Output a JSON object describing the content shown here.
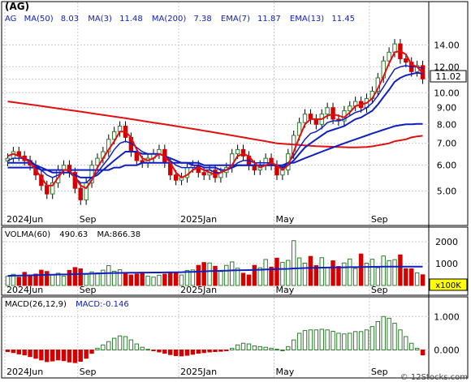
{
  "ticker": "(AG)",
  "legend_main": {
    "symbol": "AG",
    "items": [
      {
        "label": "MA(50)",
        "value": "8.03"
      },
      {
        "label": "MA(3)",
        "value": "11.48"
      },
      {
        "label": "MA(200)",
        "value": "7.38"
      },
      {
        "label": "EMA(7)",
        "value": "11.87"
      },
      {
        "label": "EMA(13)",
        "value": "11.45"
      }
    ]
  },
  "price_tag": "11.02",
  "volume_legend": {
    "label": "VOLMA(60)",
    "value": "490.63",
    "ma_label": "MA:866.38"
  },
  "volume_unit": "x100K",
  "macd_legend": {
    "label": "MACD(26,12,9)",
    "value": "MACD:-0.146"
  },
  "watermark": "© 12Stocks.com",
  "colors": {
    "up": "#2e7d2e",
    "down": "#d40000",
    "ma_blue": "#1020c0",
    "ma_red": "#e01010",
    "text_blue": "#1020c0"
  },
  "chart_data": [
    {
      "type": "candlestick",
      "scale": "log",
      "ylim": [
        4.3,
        16.0
      ],
      "yticks": [
        "14.00",
        "12.00",
        "11.00",
        "10.00",
        "9.00",
        "8.00",
        "7.00",
        "6.00",
        "5.00"
      ],
      "ytick_values": [
        14,
        12,
        11,
        10,
        9,
        8,
        7,
        6,
        5
      ],
      "x_labels": [
        {
          "label": "2024Jun",
          "week": 0
        },
        {
          "label": "Sep",
          "week": 13
        },
        {
          "label": "2025Jan",
          "week": 31
        },
        {
          "label": "May",
          "week": 48
        },
        {
          "label": "Sep",
          "week": 65
        }
      ],
      "weeks": 75,
      "close": [
        6.3,
        6.6,
        6.4,
        6.2,
        6.0,
        5.6,
        5.2,
        4.9,
        5.3,
        5.8,
        6.0,
        5.7,
        5.1,
        4.7,
        5.3,
        6.0,
        6.3,
        6.6,
        7.2,
        7.6,
        7.9,
        7.3,
        6.6,
        6.2,
        6.1,
        6.3,
        6.5,
        6.7,
        6.1,
        5.6,
        5.4,
        5.5,
        5.9,
        6.0,
        5.7,
        5.6,
        5.8,
        5.5,
        5.7,
        5.9,
        6.5,
        6.7,
        6.4,
        6.0,
        5.8,
        6.0,
        6.3,
        6.0,
        5.6,
        5.8,
        6.5,
        7.4,
        8.1,
        8.6,
        8.3,
        8.0,
        8.6,
        9.0,
        8.3,
        8.2,
        8.8,
        9.1,
        9.4,
        9.0,
        9.6,
        10.1,
        11.1,
        12.5,
        13.3,
        14.1,
        12.7,
        12.4,
        11.6,
        12.1,
        11.02
      ],
      "ma3": [
        6.4,
        6.5,
        6.4,
        6.3,
        6.1,
        5.8,
        5.5,
        5.2,
        5.2,
        5.5,
        5.8,
        5.8,
        5.5,
        5.2,
        5.1,
        5.4,
        5.9,
        6.3,
        6.7,
        7.1,
        7.6,
        7.6,
        7.3,
        6.7,
        6.3,
        6.2,
        6.3,
        6.5,
        6.4,
        6.1,
        5.7,
        5.5,
        5.6,
        5.8,
        5.9,
        5.8,
        5.7,
        5.6,
        5.7,
        5.8,
        6.0,
        6.4,
        6.5,
        6.4,
        6.1,
        5.9,
        6.0,
        6.1,
        6.0,
        5.8,
        6.0,
        6.6,
        7.3,
        8.0,
        8.3,
        8.3,
        8.3,
        8.5,
        8.6,
        8.5,
        8.4,
        8.7,
        9.1,
        9.2,
        9.3,
        9.6,
        10.3,
        11.2,
        12.3,
        13.3,
        13.4,
        13.1,
        12.2,
        12.0,
        11.48
      ],
      "ema7": [
        6.2,
        6.3,
        6.3,
        6.3,
        6.2,
        6.0,
        5.8,
        5.6,
        5.5,
        5.6,
        5.7,
        5.7,
        5.5,
        5.3,
        5.3,
        5.5,
        5.7,
        6.0,
        6.3,
        6.7,
        7.0,
        7.1,
        7.0,
        6.8,
        6.6,
        6.5,
        6.5,
        6.5,
        6.4,
        6.2,
        6.0,
        5.9,
        5.9,
        5.9,
        5.9,
        5.8,
        5.8,
        5.7,
        5.7,
        5.8,
        5.9,
        6.1,
        6.2,
        6.2,
        6.1,
        6.1,
        6.1,
        6.1,
        6.0,
        5.9,
        6.1,
        6.4,
        6.8,
        7.2,
        7.5,
        7.6,
        7.8,
        8.1,
        8.2,
        8.2,
        8.3,
        8.5,
        8.7,
        8.8,
        9.0,
        9.3,
        9.8,
        10.4,
        11.1,
        11.8,
        12.0,
        12.1,
        12.0,
        12.0,
        11.87
      ],
      "ema13": [
        6.1,
        6.1,
        6.1,
        6.1,
        6.1,
        6.0,
        5.9,
        5.8,
        5.7,
        5.7,
        5.7,
        5.7,
        5.6,
        5.5,
        5.5,
        5.5,
        5.6,
        5.8,
        6.0,
        6.2,
        6.4,
        6.6,
        6.6,
        6.6,
        6.5,
        6.5,
        6.5,
        6.5,
        6.4,
        6.3,
        6.2,
        6.1,
        6.1,
        6.0,
        6.0,
        5.9,
        5.9,
        5.9,
        5.8,
        5.8,
        5.9,
        6.0,
        6.0,
        6.0,
        6.0,
        6.0,
        6.0,
        6.0,
        6.0,
        5.9,
        6.0,
        6.2,
        6.5,
        6.8,
        7.0,
        7.2,
        7.4,
        7.6,
        7.7,
        7.8,
        7.9,
        8.1,
        8.3,
        8.4,
        8.6,
        8.8,
        9.2,
        9.7,
        10.2,
        10.8,
        11.1,
        11.3,
        11.4,
        11.5,
        11.45
      ],
      "ma50": [
        5.9,
        5.9,
        5.9,
        5.9,
        5.9,
        5.9,
        5.8,
        5.8,
        5.8,
        5.8,
        5.8,
        5.8,
        5.8,
        5.8,
        5.8,
        5.8,
        5.8,
        5.8,
        5.8,
        5.9,
        5.9,
        6.0,
        6.0,
        6.0,
        6.1,
        6.1,
        6.1,
        6.1,
        6.1,
        6.1,
        6.1,
        6.1,
        6.1,
        6.1,
        6.1,
        6.0,
        6.0,
        6.0,
        6.0,
        6.0,
        6.0,
        6.0,
        6.0,
        6.0,
        6.0,
        6.0,
        6.0,
        6.0,
        6.0,
        6.0,
        6.1,
        6.1,
        6.2,
        6.3,
        6.4,
        6.5,
        6.6,
        6.7,
        6.8,
        6.9,
        7.0,
        7.1,
        7.2,
        7.3,
        7.4,
        7.5,
        7.6,
        7.7,
        7.8,
        7.9,
        7.95,
        8.0,
        8.0,
        8.03,
        8.03
      ],
      "ma200": [
        9.4,
        9.35,
        9.3,
        9.25,
        9.2,
        9.15,
        9.1,
        9.05,
        9.0,
        8.95,
        8.9,
        8.85,
        8.8,
        8.75,
        8.7,
        8.65,
        8.6,
        8.55,
        8.5,
        8.45,
        8.4,
        8.35,
        8.3,
        8.25,
        8.2,
        8.15,
        8.1,
        8.05,
        8.0,
        7.95,
        7.9,
        7.85,
        7.8,
        7.75,
        7.7,
        7.65,
        7.6,
        7.55,
        7.5,
        7.45,
        7.4,
        7.35,
        7.3,
        7.25,
        7.2,
        7.15,
        7.1,
        7.05,
        7.0,
        6.98,
        6.96,
        6.94,
        6.92,
        6.9,
        6.88,
        6.86,
        6.85,
        6.84,
        6.83,
        6.82,
        6.81,
        6.8,
        6.8,
        6.81,
        6.82,
        6.85,
        6.9,
        6.95,
        7.0,
        7.1,
        7.15,
        7.2,
        7.3,
        7.35,
        7.38
      ]
    },
    {
      "type": "bar",
      "name": "volume",
      "ylim": [
        0,
        2300
      ],
      "yticks": [
        "2000",
        "1000"
      ],
      "ytick_values": [
        2000,
        1000
      ],
      "values": [
        420,
        510,
        380,
        600,
        450,
        520,
        700,
        640,
        480,
        560,
        430,
        690,
        820,
        760,
        510,
        620,
        580,
        700,
        910,
        650,
        720,
        560,
        480,
        520,
        600,
        430,
        380,
        470,
        520,
        610,
        560,
        480,
        690,
        710,
        920,
        1050,
        1030,
        880,
        640,
        920,
        1080,
        790,
        560,
        480,
        920,
        810,
        1190,
        840,
        1250,
        1060,
        1150,
        2050,
        1260,
        1020,
        1330,
        910,
        1270,
        820,
        1130,
        870,
        1030,
        1210,
        780,
        1440,
        1020,
        1200,
        810,
        1350,
        1140,
        1180,
        1400,
        770,
        760,
        580,
        490
      ],
      "ma": [
        440,
        450,
        455,
        460,
        465,
        470,
        480,
        490,
        495,
        500,
        505,
        510,
        520,
        530,
        535,
        540,
        545,
        555,
        565,
        570,
        575,
        580,
        582,
        585,
        588,
        590,
        592,
        595,
        598,
        600,
        605,
        610,
        618,
        625,
        635,
        645,
        655,
        665,
        670,
        680,
        690,
        695,
        700,
        705,
        712,
        720,
        730,
        738,
        748,
        755,
        762,
        780,
        790,
        798,
        805,
        810,
        815,
        820,
        825,
        828,
        832,
        838,
        840,
        846,
        850,
        855,
        856,
        860,
        862,
        864,
        866,
        866,
        866,
        866,
        866
      ]
    },
    {
      "type": "bar",
      "name": "macd",
      "ylim": [
        -0.45,
        1.25
      ],
      "yticks": [
        "1.000",
        "0.000"
      ],
      "ytick_values": [
        1.0,
        0.0
      ],
      "values": [
        -0.05,
        -0.08,
        -0.12,
        -0.15,
        -0.2,
        -0.25,
        -0.3,
        -0.35,
        -0.33,
        -0.3,
        -0.32,
        -0.36,
        -0.38,
        -0.34,
        -0.25,
        -0.1,
        0.05,
        0.15,
        0.25,
        0.35,
        0.42,
        0.4,
        0.3,
        0.18,
        0.08,
        0.02,
        -0.02,
        -0.06,
        -0.1,
        -0.14,
        -0.17,
        -0.18,
        -0.16,
        -0.13,
        -0.1,
        -0.08,
        -0.06,
        -0.05,
        -0.04,
        -0.02,
        0.05,
        0.15,
        0.2,
        0.18,
        0.12,
        0.1,
        0.08,
        0.05,
        0.02,
        0.0,
        0.1,
        0.3,
        0.5,
        0.58,
        0.6,
        0.6,
        0.62,
        0.6,
        0.56,
        0.5,
        0.48,
        0.5,
        0.55,
        0.55,
        0.6,
        0.7,
        0.85,
        1.0,
        0.95,
        0.8,
        0.6,
        0.4,
        0.2,
        0.05,
        -0.15
      ]
    }
  ]
}
